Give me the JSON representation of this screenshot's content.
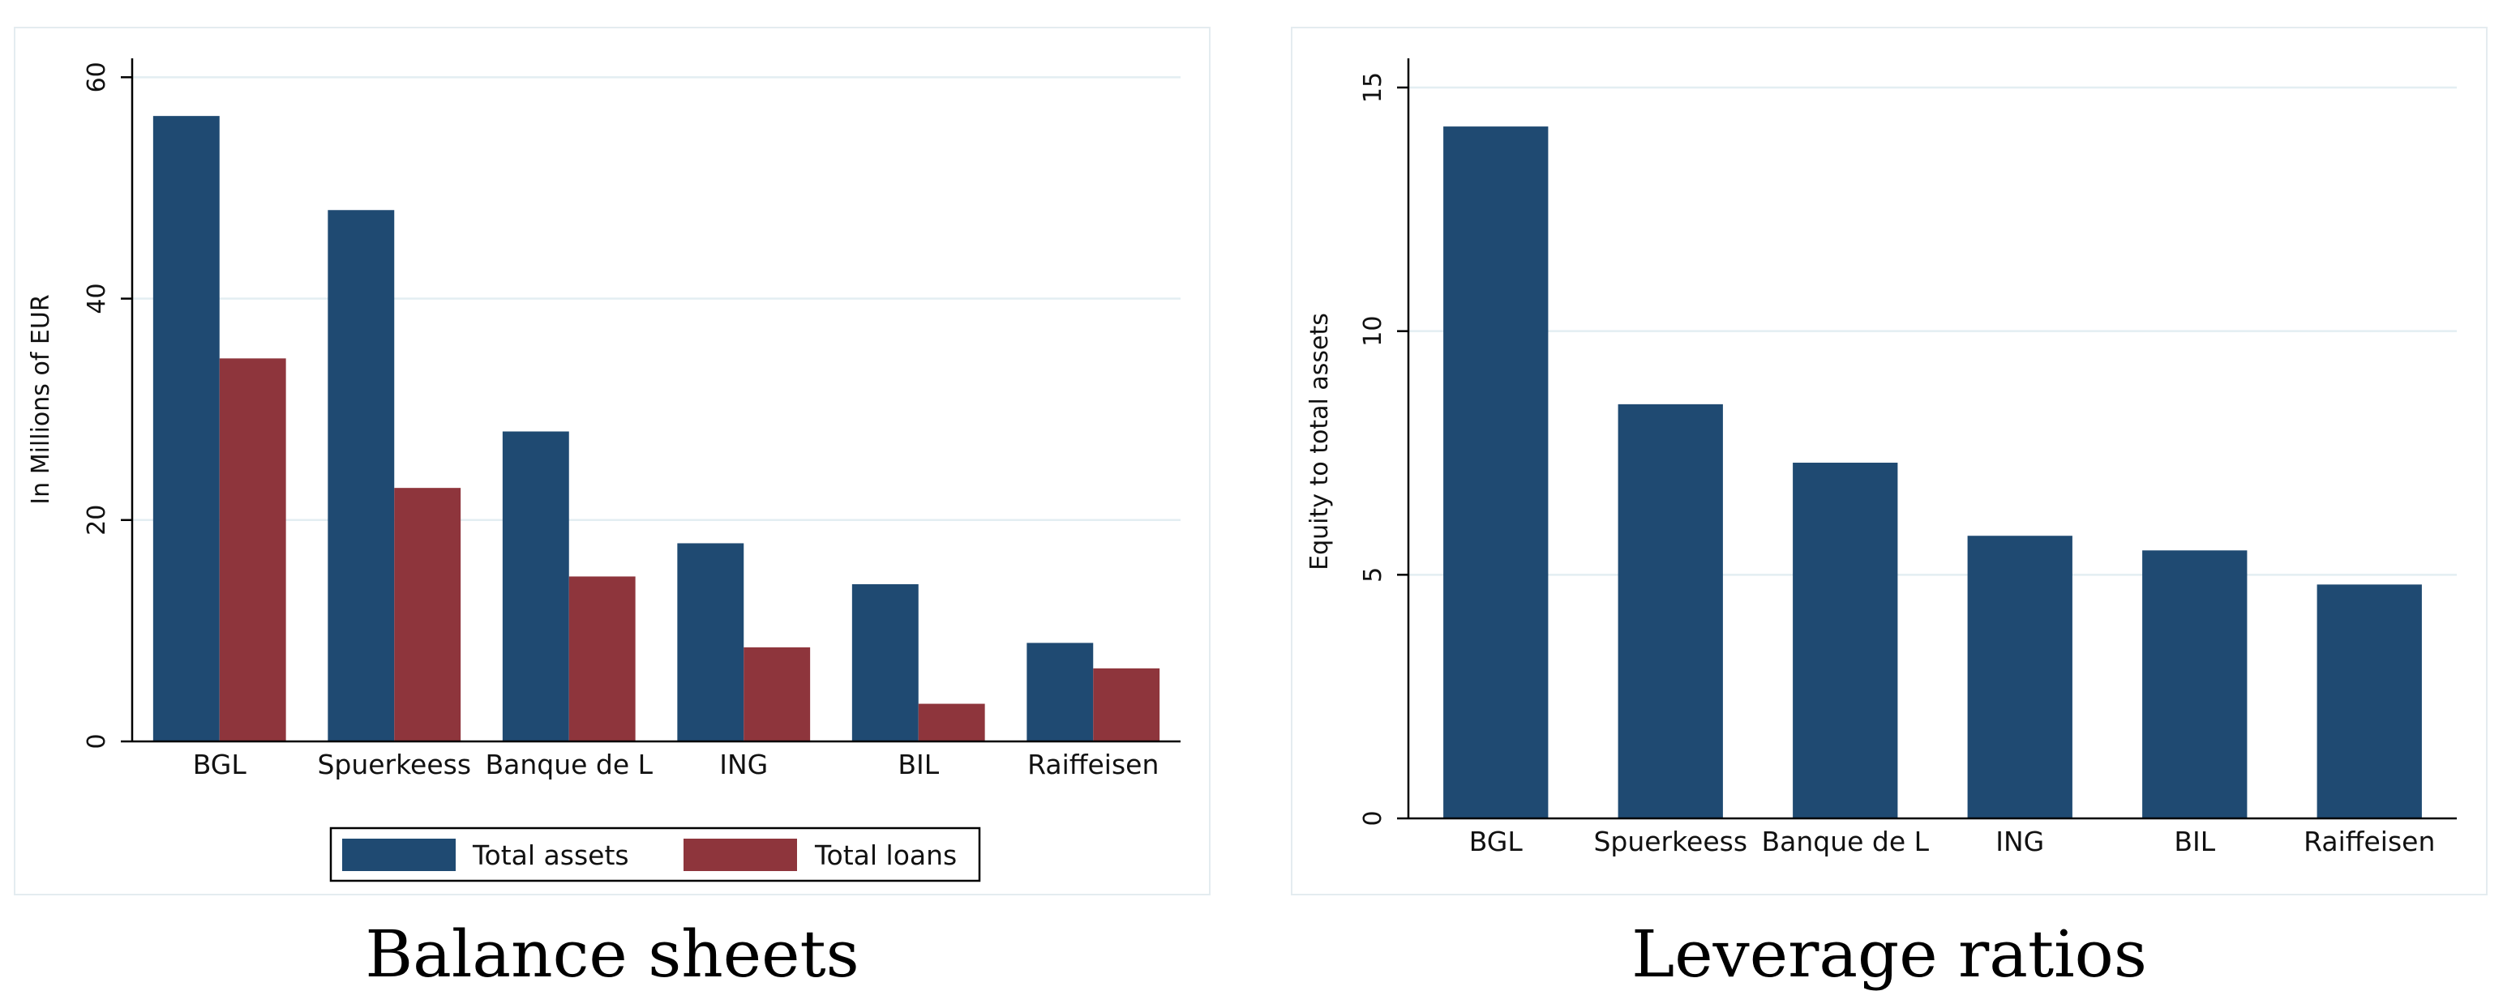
{
  "chart_data": [
    {
      "type": "bar",
      "caption": "Balance sheets",
      "categories": [
        "BGL",
        "Spuerkeess",
        "Banque de L",
        "ING",
        "BIL",
        "Raiffeisen"
      ],
      "series": [
        {
          "name": "Total assets",
          "color": "#1f4a72",
          "values": [
            56.5,
            48.0,
            28.0,
            17.9,
            14.2,
            8.9
          ]
        },
        {
          "name": "Total loans",
          "color": "#8e353c",
          "values": [
            34.6,
            22.9,
            14.9,
            8.5,
            3.4,
            6.6
          ]
        }
      ],
      "ylabel": "In Millions of EUR",
      "xlabel": "",
      "ylim": [
        0,
        62
      ],
      "yticks": [
        0,
        20,
        40,
        60
      ],
      "grid": true,
      "legend": "bottom"
    },
    {
      "type": "bar",
      "caption": "Leverage ratios",
      "categories": [
        "BGL",
        "Spuerkeess",
        "Banque de L",
        "ING",
        "BIL",
        "Raiffeisen"
      ],
      "series": [
        {
          "name": "Equity to total assets",
          "color": "#1f4a72",
          "values": [
            14.2,
            8.5,
            7.3,
            5.8,
            5.5,
            4.8
          ]
        }
      ],
      "ylabel": "Equity to total assets",
      "xlabel": "",
      "ylim": [
        0,
        15
      ],
      "yticks": [
        0,
        5,
        10,
        15
      ],
      "grid": true,
      "legend": "none"
    }
  ]
}
